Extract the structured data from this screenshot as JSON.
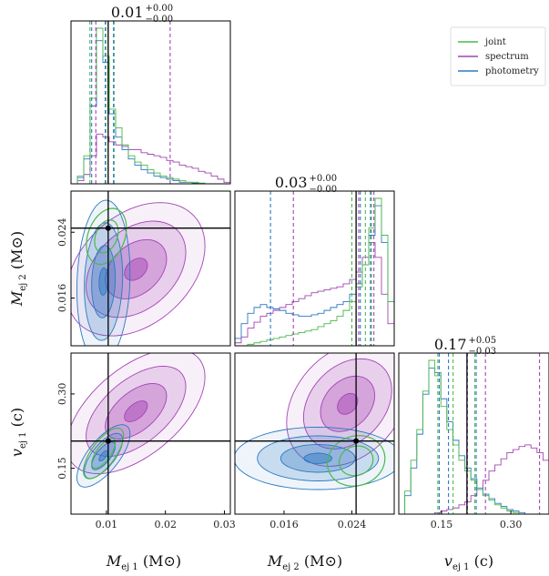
{
  "chart_data": {
    "type": "corner",
    "parameters": [
      {
        "symbol": "M",
        "sub": "ej 1",
        "unit": "(M⊙)",
        "range": [
          0.004,
          0.031
        ],
        "ticks": [
          0.01,
          0.02,
          0.03
        ],
        "tick_labels": [
          "0.01",
          "0.02",
          "0.03"
        ],
        "truth": 0.0103,
        "title_main": "0.01",
        "title_plus": "+0.00",
        "title_minus": "−0.00"
      },
      {
        "symbol": "M",
        "sub": "ej 2",
        "unit": "(M⊙)",
        "range": [
          0.0102,
          0.029
        ],
        "ticks": [
          0.016,
          0.024
        ],
        "tick_labels": [
          "0.016",
          "0.024"
        ],
        "truth": 0.0245,
        "title_main": "0.03",
        "title_plus": "+0.00",
        "title_minus": "−0.00"
      },
      {
        "symbol": "v",
        "sub": "ej 1",
        "unit": "(c)",
        "range": [
          0.0575,
          0.3825
        ],
        "ticks": [
          0.15,
          0.3
        ],
        "tick_labels": [
          "0.15",
          "0.30"
        ],
        "truth": 0.205,
        "title_main": "0.17",
        "title_plus": "+0.05",
        "title_minus": "−0.03"
      }
    ],
    "legend": {
      "placement": "top-right",
      "entries": [
        "joint",
        "spectrum",
        "photometry"
      ]
    },
    "series": [
      {
        "name": "joint",
        "color": "#4cb84c",
        "quantiles": [
          [
            0.0072,
            0.0099,
            0.0113
          ],
          [
            0.024,
            0.0256,
            0.0263
          ],
          [
            0.142,
            0.175,
            0.222
          ]
        ]
      },
      {
        "name": "spectrum",
        "color": "#a444b4",
        "quantiles": [
          [
            0.0082,
            0.0103,
            0.0208
          ],
          [
            0.0171,
            0.0248,
            0.0266
          ],
          [
            0.206,
            0.245,
            0.362
          ]
        ]
      },
      {
        "name": "photometry",
        "color": "#2b79c2",
        "quantiles": [
          [
            0.0075,
            0.0098,
            0.0112
          ],
          [
            0.0144,
            0.025,
            0.0262
          ],
          [
            0.145,
            0.165,
            0.225
          ]
        ]
      }
    ],
    "histograms": {
      "p0": {
        "joint": [
          0,
          0.05,
          0.18,
          0.55,
          1.0,
          0.82,
          0.48,
          0.36,
          0.25,
          0.18,
          0.14,
          0.12,
          0.09,
          0.07,
          0.05,
          0.04,
          0.03,
          0.02,
          0.01,
          0.01,
          0.005,
          0,
          0,
          0,
          0
        ],
        "spectrum": [
          0,
          0.02,
          0.06,
          0.18,
          0.32,
          0.3,
          0.27,
          0.25,
          0.24,
          0.22,
          0.22,
          0.2,
          0.19,
          0.18,
          0.17,
          0.15,
          0.14,
          0.12,
          0.11,
          0.1,
          0.08,
          0.07,
          0.05,
          0.03,
          0.01
        ],
        "photometry": [
          0,
          0.04,
          0.16,
          0.5,
          0.92,
          0.78,
          0.45,
          0.3,
          0.22,
          0.16,
          0.12,
          0.09,
          0.07,
          0.05,
          0.04,
          0.03,
          0.02,
          0.01,
          0.01,
          0.005,
          0,
          0,
          0,
          0,
          0
        ]
      },
      "p1": {
        "joint": [
          0,
          0,
          0.01,
          0.02,
          0.03,
          0.04,
          0.05,
          0.06,
          0.07,
          0.08,
          0.09,
          0.1,
          0.11,
          0.13,
          0.15,
          0.17,
          0.2,
          0.24,
          0.3,
          0.4,
          0.55,
          0.8,
          1.0,
          0.75,
          0.3
        ],
        "spectrum": [
          0.02,
          0.06,
          0.12,
          0.16,
          0.2,
          0.22,
          0.24,
          0.26,
          0.28,
          0.3,
          0.32,
          0.34,
          0.36,
          0.37,
          0.38,
          0.39,
          0.4,
          0.42,
          0.45,
          0.5,
          0.6,
          0.7,
          0.6,
          0.35,
          0.15
        ],
        "photometry": [
          0.05,
          0.15,
          0.22,
          0.26,
          0.28,
          0.26,
          0.25,
          0.24,
          0.22,
          0.21,
          0.2,
          0.2,
          0.21,
          0.22,
          0.24,
          0.26,
          0.28,
          0.3,
          0.35,
          0.42,
          0.55,
          0.75,
          0.95,
          0.7,
          0.3
        ]
      },
      "p2": {
        "joint": [
          0,
          0.15,
          0.35,
          0.55,
          0.8,
          1.0,
          0.9,
          0.7,
          0.55,
          0.45,
          0.35,
          0.28,
          0.22,
          0.16,
          0.12,
          0.09,
          0.06,
          0.04,
          0.02,
          0.01,
          0,
          0,
          0,
          0,
          0
        ],
        "spectrum": [
          0,
          0,
          0,
          0,
          0,
          0,
          0.01,
          0.02,
          0.03,
          0.04,
          0.06,
          0.08,
          0.12,
          0.16,
          0.22,
          0.28,
          0.32,
          0.36,
          0.4,
          0.42,
          0.44,
          0.45,
          0.43,
          0.4,
          0.35
        ],
        "photometry": [
          0,
          0.12,
          0.3,
          0.52,
          0.78,
          0.95,
          0.92,
          0.75,
          0.6,
          0.48,
          0.38,
          0.3,
          0.23,
          0.17,
          0.13,
          0.1,
          0.07,
          0.05,
          0.03,
          0.02,
          0.01,
          0,
          0,
          0,
          0
        ]
      }
    },
    "contours_2d": {
      "p1_vs_p0": {
        "spectrum": {
          "center": [
            0.015,
            0.0195
          ],
          "sigma": [
            0.0065,
            0.0045
          ],
          "rho": 0.35
        },
        "photometry": {
          "center": [
            0.0095,
            0.018
          ],
          "sigma": [
            0.0025,
            0.0055
          ],
          "rho": 0.1
        },
        "joint": {
          "center": [
            0.01,
            0.0235
          ],
          "sigma": [
            0.002,
            0.002
          ],
          "rho": 0.3
        }
      },
      "p2_vs_p0": {
        "spectrum": {
          "center": [
            0.015,
            0.265
          ],
          "sigma": [
            0.0065,
            0.07
          ],
          "rho": 0.55
        },
        "photometry": {
          "center": [
            0.0095,
            0.175
          ],
          "sigma": [
            0.0025,
            0.035
          ],
          "rho": 0.7
        },
        "joint": {
          "center": [
            0.0095,
            0.18
          ],
          "sigma": [
            0.002,
            0.03
          ],
          "rho": 0.7
        }
      },
      "p2_vs_p1": {
        "spectrum": {
          "center": [
            0.0235,
            0.28
          ],
          "sigma": [
            0.004,
            0.07
          ],
          "rho": 0.3
        },
        "photometry": {
          "center": [
            0.02,
            0.17
          ],
          "sigma": [
            0.0055,
            0.035
          ],
          "rho": 0.0
        },
        "joint": {
          "center": [
            0.0245,
            0.165
          ],
          "sigma": [
            0.002,
            0.03
          ],
          "rho": 0.1
        }
      }
    },
    "levels_sigma": [
      0.5,
      1.0,
      1.5,
      2.0
    ],
    "fill_opacity": [
      0.15,
      0.35,
      0.55,
      0.85
    ],
    "grid": false
  }
}
